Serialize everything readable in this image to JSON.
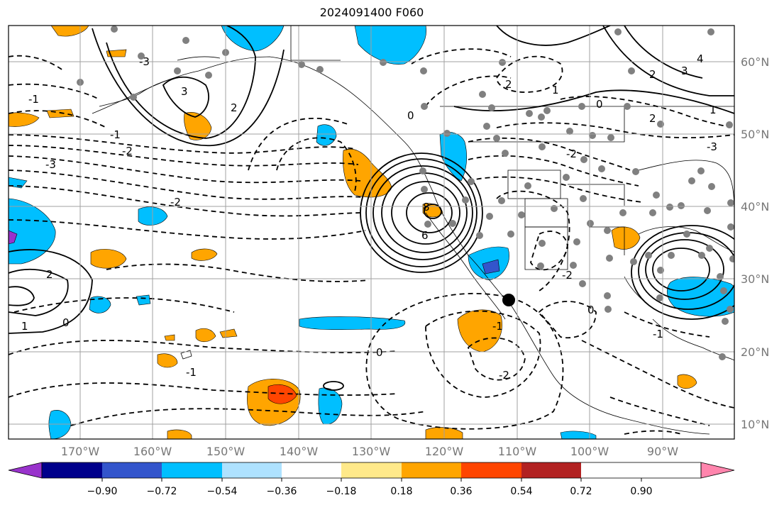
{
  "title": "2024091400 F060",
  "map": {
    "lon_labels": [
      "170°W",
      "160°W",
      "150°W",
      "140°W",
      "130°W",
      "120°W",
      "110°W",
      "100°W",
      "90°W"
    ],
    "lat_labels": [
      "60°N",
      "50°N",
      "40°N",
      "30°N",
      "20°N",
      "10°N"
    ],
    "contour_labels": [
      "-3",
      "-2",
      "-2",
      "-1",
      "-1",
      "0",
      "0",
      "0",
      "1",
      "1",
      "2",
      "2",
      "2",
      "3",
      "4",
      "6",
      "8",
      "-1",
      "-2",
      "-2",
      "-1",
      "0",
      "-1",
      "1",
      "2",
      "3",
      "-3",
      "-2",
      "0",
      "2",
      "-3"
    ]
  },
  "colorbar": {
    "ticks": [
      "−0.90",
      "−0.72",
      "−0.54",
      "−0.36",
      "−0.18",
      "0.18",
      "0.36",
      "0.54",
      "0.72",
      "0.90"
    ],
    "colors": [
      "#9933cc",
      "#00008b",
      "#3355cc",
      "#00bfff",
      "#aee2ff",
      "#ffffff",
      "#ffe98a",
      "#ffa500",
      "#ff4500",
      "#b22222",
      "#ff85ad"
    ]
  }
}
